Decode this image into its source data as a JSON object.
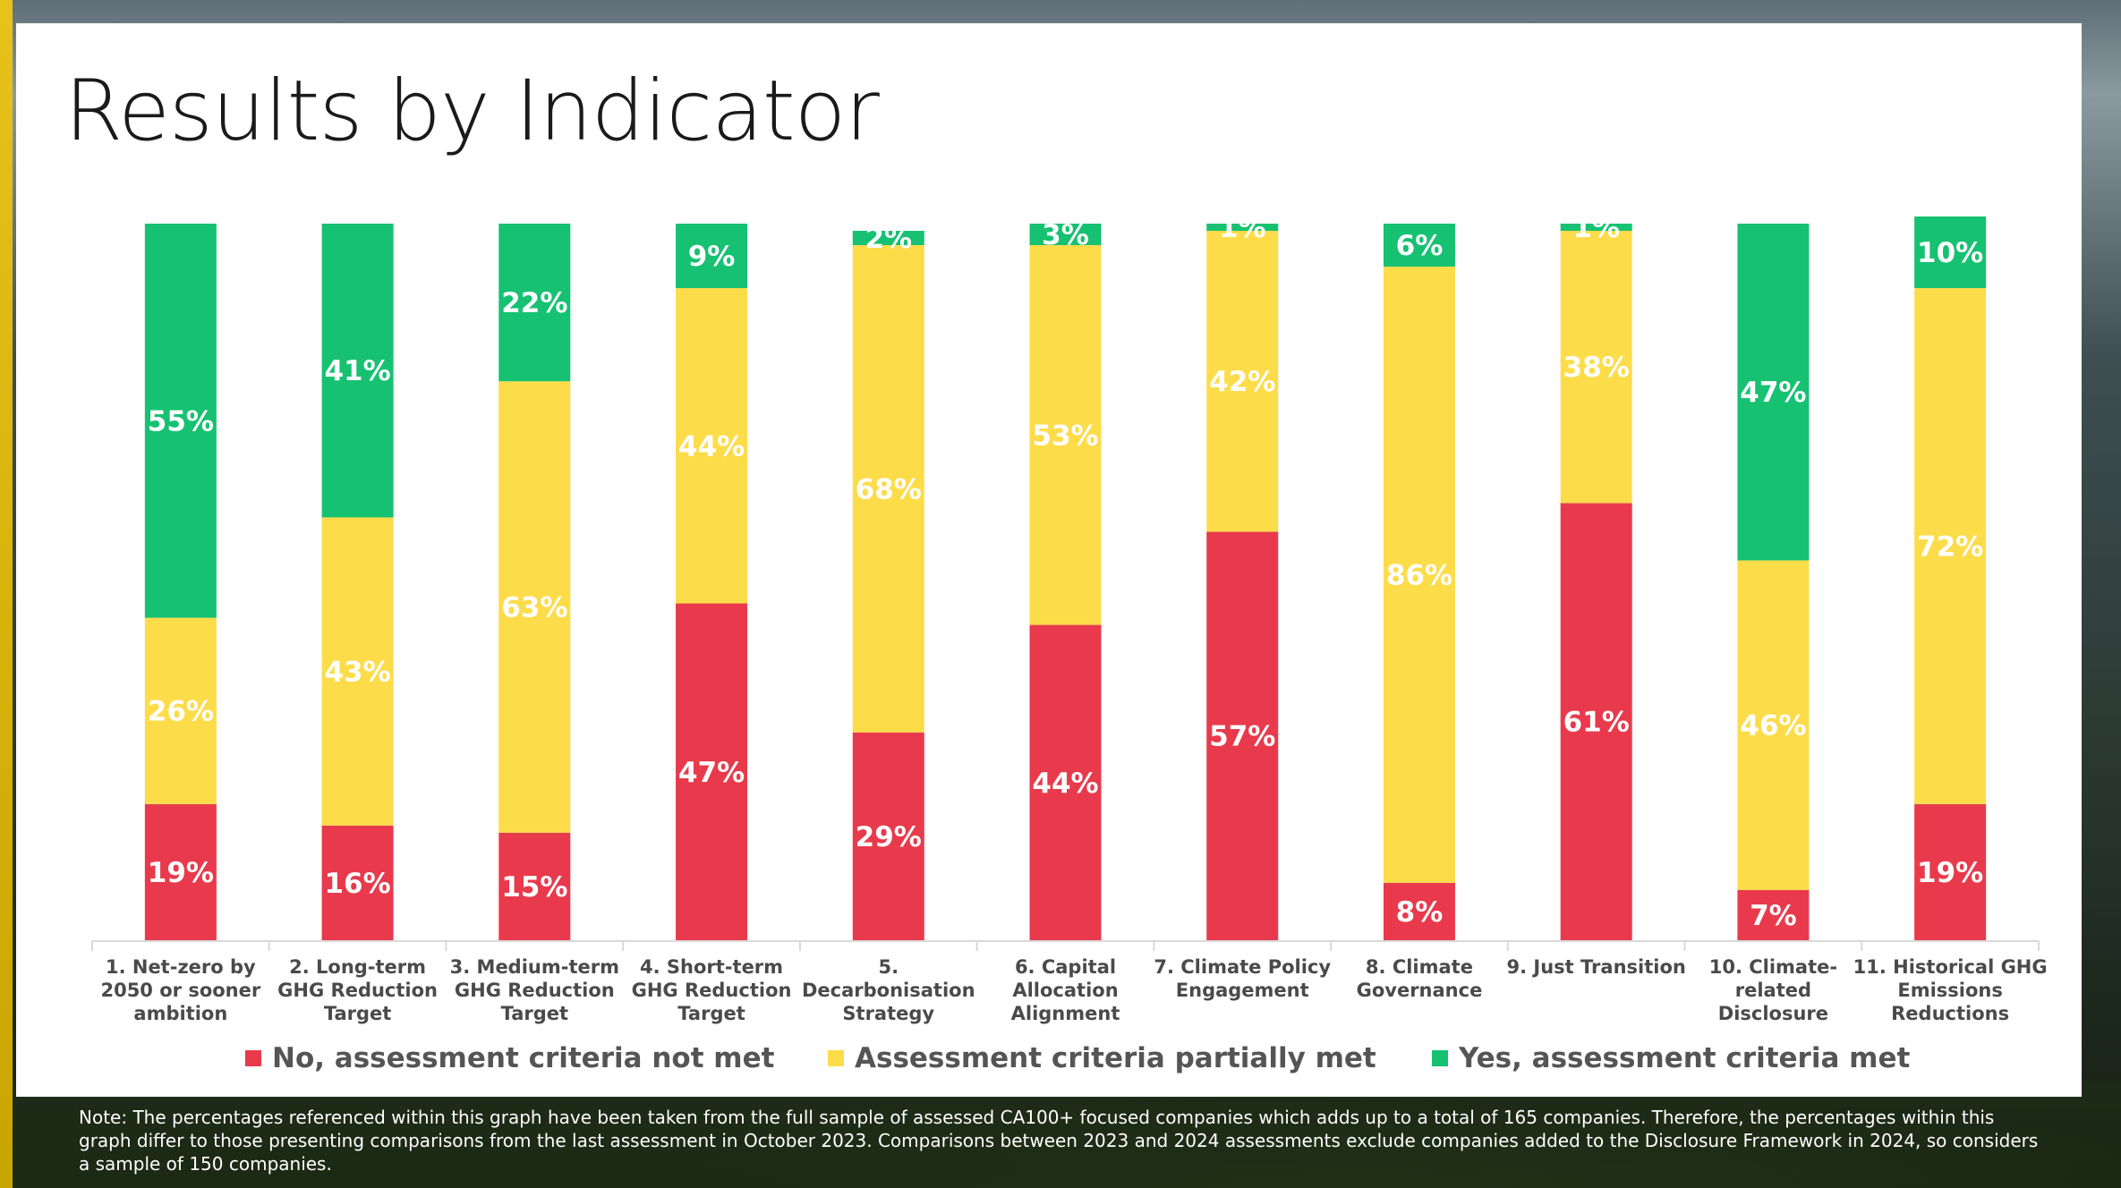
{
  "title": "Results by Indicator",
  "colors": {
    "no": "#e83a4c",
    "partial": "#fddc4a",
    "yes": "#16c172"
  },
  "chart_data": {
    "type": "bar",
    "stacked": true,
    "title": "Results by Indicator",
    "xlabel": "",
    "ylabel": "",
    "ylim": [
      0,
      100
    ],
    "grid": false,
    "legend_position": "bottom",
    "categories": [
      [
        "1. Net-zero by",
        "2050 or sooner",
        "ambition"
      ],
      [
        "2. Long-term",
        "GHG Reduction",
        "Target"
      ],
      [
        "3. Medium-term",
        "GHG Reduction",
        "Target"
      ],
      [
        "4. Short-term",
        "GHG Reduction",
        "Target"
      ],
      [
        "5.",
        "Decarbonisation",
        "Strategy"
      ],
      [
        "6. Capital",
        "Allocation",
        "Alignment"
      ],
      [
        "7. Climate Policy",
        "Engagement"
      ],
      [
        "8. Climate",
        "Governance"
      ],
      [
        "9. Just Transition"
      ],
      [
        "10. Climate-",
        "related",
        "Disclosure"
      ],
      [
        "11. Historical GHG",
        "Emissions",
        "Reductions"
      ]
    ],
    "series": [
      {
        "name": "No, assessment criteria not met",
        "key": "no",
        "values": [
          19,
          16,
          15,
          47,
          29,
          44,
          57,
          8,
          61,
          7,
          19
        ]
      },
      {
        "name": "Assessment criteria partially met",
        "key": "partial",
        "values": [
          26,
          43,
          63,
          44,
          68,
          53,
          42,
          86,
          38,
          46,
          72
        ]
      },
      {
        "name": "Yes, assessment criteria met",
        "key": "yes",
        "values": [
          55,
          41,
          22,
          9,
          2,
          3,
          1,
          6,
          1,
          47,
          10
        ]
      }
    ]
  },
  "legend": [
    {
      "label": "No, assessment criteria not met",
      "color": "#e83a4c"
    },
    {
      "label": "Assessment criteria partially met",
      "color": "#fddc4a"
    },
    {
      "label": "Yes, assessment criteria met",
      "color": "#16c172"
    }
  ],
  "note": "Note: The percentages referenced within this graph have been taken from the full sample of assessed CA100+ focused companies which adds up to a total of 165 companies. Therefore, the percentages within this graph differ to those presenting comparisons from the last assessment in October 2023. Comparisons between 2023 and 2024 assessments exclude companies added to the Disclosure Framework in 2024, so considers a sample of 150 companies."
}
